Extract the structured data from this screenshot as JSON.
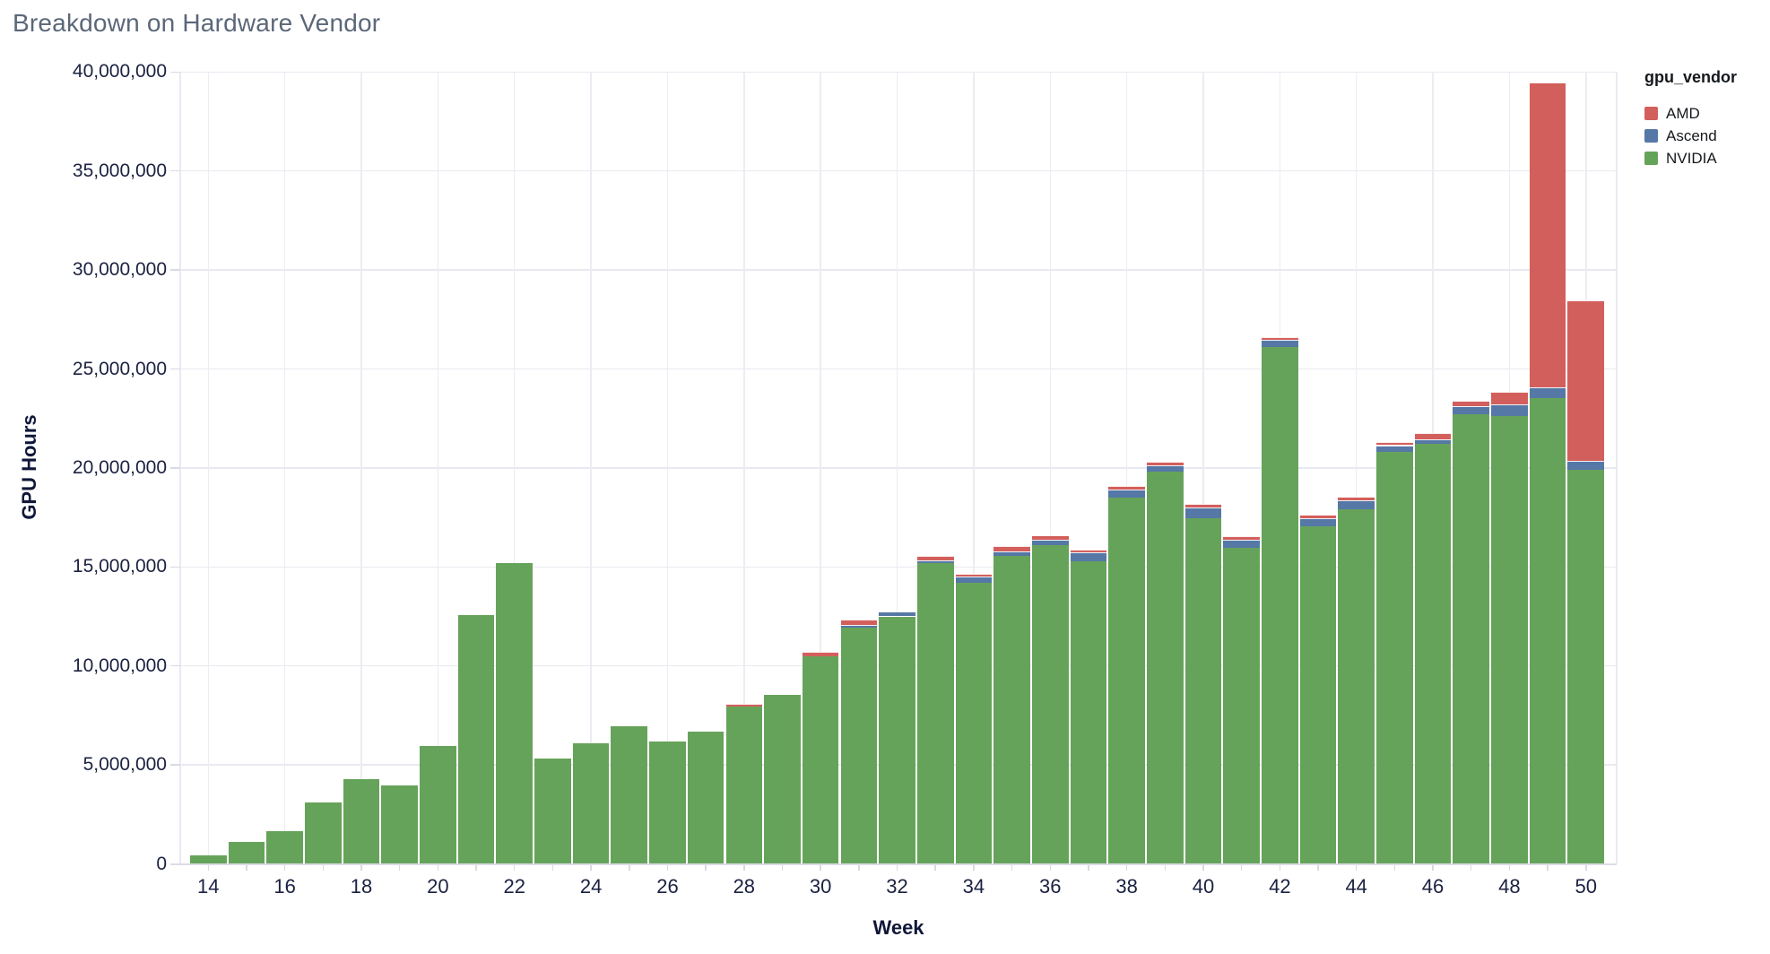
{
  "page": {
    "title": "Breakdown on Hardware Vendor"
  },
  "legend": {
    "title": "gpu_vendor"
  },
  "colors": {
    "background": "#ffffff",
    "grid": "#e9e9f1",
    "axis_line": "#d9d9e3",
    "tick_text": "#1b2140",
    "axis_title_text": "#10173a",
    "chart_title_text": "#5b6779",
    "legend_text": "#15181c"
  },
  "chart_data": {
    "type": "bar",
    "stacked": true,
    "title": "Breakdown on Hardware Vendor",
    "xlabel": "Week",
    "ylabel": "GPU Hours",
    "grid": true,
    "legend_position": "top-right",
    "ylim": [
      0,
      40000000
    ],
    "x": [
      14,
      15,
      16,
      17,
      18,
      19,
      20,
      21,
      22,
      23,
      24,
      25,
      26,
      27,
      28,
      29,
      30,
      31,
      32,
      33,
      34,
      35,
      36,
      37,
      38,
      39,
      40,
      41,
      42,
      43,
      44,
      45,
      46,
      47,
      48,
      49,
      50
    ],
    "x_labeled_ticks": [
      14,
      16,
      18,
      20,
      22,
      24,
      26,
      28,
      30,
      32,
      34,
      36,
      38,
      40,
      42,
      44,
      46,
      48,
      50
    ],
    "y_ticks": [
      {
        "v": 0,
        "label": "0"
      },
      {
        "v": 5000000,
        "label": "5,000,000"
      },
      {
        "v": 10000000,
        "label": "10,000,000"
      },
      {
        "v": 15000000,
        "label": "15,000,000"
      },
      {
        "v": 20000000,
        "label": "20,000,000"
      },
      {
        "v": 25000000,
        "label": "25,000,000"
      },
      {
        "v": 30000000,
        "label": "30,000,000"
      },
      {
        "v": 35000000,
        "label": "35,000,000"
      },
      {
        "v": 40000000,
        "label": "40,000,000"
      }
    ],
    "stack_order_bottom_to_top": [
      "NVIDIA",
      "Ascend",
      "AMD"
    ],
    "series": [
      {
        "name": "AMD",
        "color": "#d35f5c",
        "values": [
          0,
          0,
          0,
          0,
          0,
          0,
          0,
          0,
          0,
          0,
          0,
          0,
          0,
          0,
          120000,
          0,
          200000,
          280000,
          0,
          250000,
          150000,
          250000,
          250000,
          120000,
          200000,
          150000,
          200000,
          200000,
          150000,
          180000,
          200000,
          150000,
          300000,
          300000,
          650000,
          15400000,
          8100000
        ]
      },
      {
        "name": "Ascend",
        "color": "#5578a6",
        "values": [
          0,
          0,
          0,
          0,
          0,
          0,
          0,
          0,
          0,
          0,
          0,
          0,
          0,
          0,
          0,
          0,
          0,
          120000,
          250000,
          120000,
          300000,
          250000,
          270000,
          450000,
          400000,
          350000,
          550000,
          400000,
          350000,
          400000,
          450000,
          350000,
          250000,
          400000,
          600000,
          500000,
          450000
        ]
      },
      {
        "name": "NVIDIA",
        "color": "#66a35a",
        "values": [
          450000,
          1100000,
          1650000,
          3100000,
          4300000,
          3950000,
          5950000,
          12550000,
          15200000,
          5300000,
          6100000,
          6950000,
          6200000,
          6700000,
          7950000,
          8550000,
          10500000,
          11950000,
          12500000,
          15200000,
          14200000,
          15550000,
          16100000,
          15300000,
          18500000,
          19800000,
          17450000,
          15950000,
          26100000,
          17050000,
          17900000,
          20800000,
          21200000,
          22700000,
          22600000,
          23550000,
          19900000
        ]
      }
    ]
  }
}
